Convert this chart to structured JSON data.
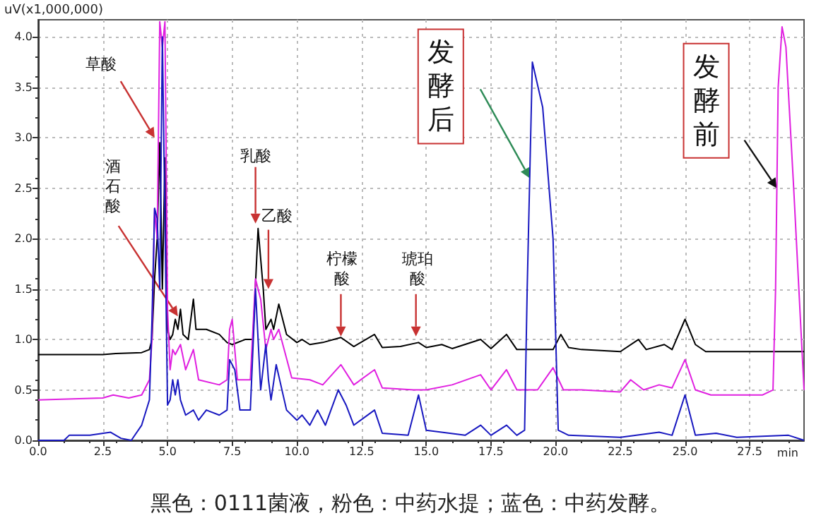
{
  "chart_data": {
    "type": "line",
    "ylabel": "uV(x1,000,000)",
    "xlabel": "min",
    "xlim": [
      0,
      29.6
    ],
    "ylim": [
      0,
      4.17
    ],
    "xticks": [
      {
        "value": 0,
        "label": "0.0"
      },
      {
        "value": 2.5,
        "label": "2.5"
      },
      {
        "value": 5,
        "label": "5.0"
      },
      {
        "value": 7.5,
        "label": "7.5"
      },
      {
        "value": 10,
        "label": "10.0"
      },
      {
        "value": 12.5,
        "label": "12.5"
      },
      {
        "value": 15,
        "label": "15.0"
      },
      {
        "value": 17.5,
        "label": "17.5"
      },
      {
        "value": 20,
        "label": "20.0"
      },
      {
        "value": 22.5,
        "label": "22.5"
      },
      {
        "value": 25,
        "label": "25.0"
      },
      {
        "value": 27.5,
        "label": "27.5"
      }
    ],
    "yticks": [
      {
        "value": 0,
        "label": "0.0"
      },
      {
        "value": 0.5,
        "label": "0.5"
      },
      {
        "value": 1,
        "label": "1.0"
      },
      {
        "value": 1.5,
        "label": "1.5"
      },
      {
        "value": 2,
        "label": "2.0"
      },
      {
        "value": 2.5,
        "label": "2.5"
      },
      {
        "value": 3,
        "label": "3.0"
      },
      {
        "value": 3.5,
        "label": "3.5"
      },
      {
        "value": 4,
        "label": "4.0"
      }
    ],
    "grid": true,
    "marker": "none",
    "line_style": "solid",
    "series": [
      {
        "color": "#000000",
        "x": [
          0,
          2.5,
          3.0,
          4.0,
          4.3,
          4.4,
          4.5,
          4.6,
          4.7,
          4.8,
          4.9,
          5.0,
          5.1,
          5.2,
          5.3,
          5.4,
          5.5,
          5.6,
          5.8,
          6.0,
          6.1,
          6.5,
          7.0,
          7.3,
          7.5,
          8.0,
          8.3,
          8.5,
          8.7,
          8.8,
          9.0,
          9.1,
          9.3,
          9.6,
          10.0,
          10.2,
          10.5,
          11.0,
          11.7,
          12.2,
          13.0,
          13.3,
          14.0,
          14.7,
          15.0,
          15.6,
          16.0,
          17.1,
          17.5,
          18.1,
          18.5,
          19.0,
          19.9,
          20.2,
          20.5,
          21.0,
          22.5,
          23.2,
          23.5,
          24.2,
          24.5,
          25.0,
          25.4,
          25.8,
          29.6
        ],
        "values": [
          0.85,
          0.85,
          0.86,
          0.87,
          0.9,
          1.0,
          1.6,
          2.0,
          2.95,
          1.5,
          2.8,
          1.1,
          1.0,
          1.05,
          1.2,
          1.1,
          1.3,
          1.05,
          1.0,
          1.4,
          1.1,
          1.1,
          1.05,
          0.97,
          0.95,
          1.0,
          1.0,
          2.1,
          1.5,
          1.1,
          1.2,
          1.1,
          1.35,
          1.05,
          0.97,
          1.0,
          0.95,
          0.97,
          1.02,
          0.93,
          1.05,
          0.92,
          0.93,
          0.97,
          0.92,
          0.95,
          0.91,
          1.0,
          0.91,
          1.05,
          0.9,
          0.9,
          0.9,
          1.05,
          0.92,
          0.9,
          0.88,
          1.0,
          0.9,
          0.95,
          0.9,
          1.2,
          0.95,
          0.88,
          0.88
        ]
      },
      {
        "color": "#e020e0",
        "x": [
          0,
          2.5,
          2.9,
          3.5,
          4.0,
          4.3,
          4.4,
          4.5,
          4.6,
          4.7,
          4.8,
          4.9,
          5.0,
          5.1,
          5.2,
          5.3,
          5.5,
          5.7,
          6.0,
          6.2,
          7.0,
          7.3,
          7.4,
          7.5,
          7.7,
          8.2,
          8.4,
          8.6,
          8.8,
          9.0,
          9.1,
          9.3,
          9.8,
          10.5,
          11.0,
          11.7,
          12.2,
          13.0,
          13.3,
          14.5,
          15.0,
          16.0,
          17.1,
          17.5,
          18.1,
          18.5,
          19.3,
          19.9,
          20.3,
          21.0,
          22.5,
          22.9,
          23.4,
          24.0,
          24.5,
          25.0,
          25.4,
          26.0,
          28.0,
          28.4,
          28.5,
          28.6,
          28.75,
          28.9,
          29.2,
          29.6
        ],
        "values": [
          0.4,
          0.42,
          0.45,
          0.42,
          0.45,
          0.6,
          1.0,
          2.3,
          2.0,
          4.15,
          3.9,
          4.15,
          1.3,
          0.7,
          0.9,
          0.85,
          0.95,
          0.7,
          0.9,
          0.6,
          0.55,
          0.6,
          1.1,
          1.2,
          0.6,
          0.6,
          1.6,
          1.4,
          0.9,
          1.1,
          1.0,
          1.1,
          0.62,
          0.6,
          0.55,
          0.75,
          0.55,
          0.7,
          0.52,
          0.5,
          0.5,
          0.55,
          0.65,
          0.5,
          0.7,
          0.5,
          0.5,
          0.72,
          0.5,
          0.5,
          0.48,
          0.6,
          0.5,
          0.55,
          0.52,
          0.8,
          0.5,
          0.45,
          0.45,
          0.5,
          1.5,
          3.5,
          4.1,
          3.9,
          2.5,
          0.5
        ]
      },
      {
        "color": "#1818c0",
        "x": [
          0,
          1.0,
          1.2,
          2.0,
          2.8,
          3.2,
          3.6,
          4.0,
          4.3,
          4.4,
          4.5,
          4.6,
          4.7,
          4.8,
          4.9,
          5.0,
          5.1,
          5.2,
          5.3,
          5.4,
          5.5,
          5.7,
          6.0,
          6.2,
          6.5,
          7.0,
          7.3,
          7.4,
          7.6,
          7.8,
          8.2,
          8.4,
          8.6,
          8.8,
          8.9,
          9.0,
          9.2,
          9.6,
          10.0,
          10.2,
          10.5,
          10.8,
          11.1,
          11.6,
          11.9,
          12.2,
          13.0,
          13.3,
          14.3,
          14.7,
          15.0,
          16.5,
          17.1,
          17.5,
          18.1,
          18.5,
          18.8,
          18.9,
          19.1,
          19.5,
          19.9,
          20.1,
          20.5,
          22.5,
          24.0,
          24.5,
          25.0,
          25.4,
          26.2,
          27.0,
          29.0,
          29.6
        ],
        "values": [
          0.0,
          0.0,
          0.05,
          0.05,
          0.08,
          0.02,
          0.0,
          0.15,
          0.4,
          1.2,
          2.3,
          2.2,
          1.5,
          4.0,
          2.2,
          0.35,
          0.4,
          0.6,
          0.45,
          0.6,
          0.4,
          0.25,
          0.3,
          0.2,
          0.3,
          0.25,
          0.3,
          0.8,
          0.7,
          0.3,
          0.3,
          1.5,
          0.5,
          0.95,
          0.6,
          0.4,
          0.75,
          0.3,
          0.2,
          0.25,
          0.15,
          0.3,
          0.15,
          0.5,
          0.35,
          0.15,
          0.3,
          0.07,
          0.05,
          0.45,
          0.1,
          0.05,
          0.15,
          0.05,
          0.15,
          0.05,
          0.1,
          1.5,
          3.75,
          3.3,
          2.0,
          0.1,
          0.05,
          0.03,
          0.08,
          0.05,
          0.45,
          0.05,
          0.07,
          0.03,
          0.05,
          0.0
        ]
      }
    ],
    "annotations": [
      {
        "text": "草酸",
        "x": 4.5,
        "y": 3.0
      },
      {
        "text": "酒石酸",
        "x": 5.4,
        "y": 1.23
      },
      {
        "text": "乳酸",
        "x": 8.4,
        "y": 2.15
      },
      {
        "text": "乙酸",
        "x": 8.9,
        "y": 1.5
      },
      {
        "text": "柠檬酸",
        "x": 11.7,
        "y": 1.03
      },
      {
        "text": "琥珀酸",
        "x": 14.6,
        "y": 1.03
      },
      {
        "text": "发酵后",
        "x": 19.0,
        "y": 2.6
      },
      {
        "text": "发酵前",
        "x": 28.55,
        "y": 2.5
      },
      "黑色：0111菌液，粉色：中药水提；蓝色：中药发酵。"
    ]
  }
}
